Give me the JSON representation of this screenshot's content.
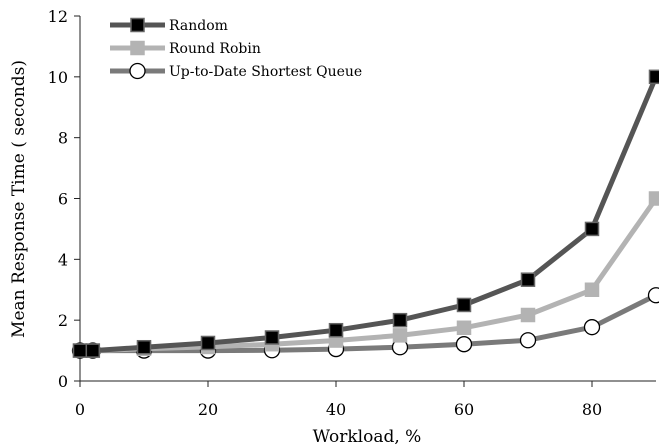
{
  "chart_data": {
    "type": "line",
    "xlabel": "Workload, %",
    "ylabel": "Mean Response Time ( seconds)",
    "xlim": [
      0,
      90
    ],
    "ylim": [
      0,
      12
    ],
    "xticks": [
      0,
      20,
      40,
      60,
      80
    ],
    "yticks": [
      0,
      2,
      4,
      6,
      8,
      10,
      12
    ],
    "grid": false,
    "legend_position": "top-left",
    "series": [
      {
        "name": "Random",
        "color": "#555555",
        "marker": "square-filled",
        "marker_fill": "#000000",
        "points": [
          [
            0,
            1.0
          ],
          [
            2,
            1.0
          ],
          [
            10,
            1.11
          ],
          [
            20,
            1.25
          ],
          [
            30,
            1.43
          ],
          [
            40,
            1.67
          ],
          [
            50,
            2.0
          ],
          [
            60,
            2.5
          ],
          [
            70,
            3.33
          ],
          [
            80,
            5.0
          ],
          [
            90,
            10.0
          ]
        ]
      },
      {
        "name": "Round Robin",
        "color": "#b3b3b3",
        "marker": "square-filled",
        "marker_fill": "#b3b3b3",
        "points": [
          [
            0,
            1.0
          ],
          [
            2,
            1.0
          ],
          [
            10,
            1.06
          ],
          [
            20,
            1.12
          ],
          [
            30,
            1.21
          ],
          [
            40,
            1.33
          ],
          [
            50,
            1.5
          ],
          [
            60,
            1.75
          ],
          [
            70,
            2.17
          ],
          [
            80,
            3.0
          ],
          [
            90,
            6.0
          ]
        ]
      },
      {
        "name": "Up-to-Date Shortest Queue",
        "color": "#7a7a7a",
        "marker": "circle-open",
        "marker_fill": "#ffffff",
        "points": [
          [
            0,
            1.0
          ],
          [
            2,
            1.0
          ],
          [
            10,
            1.0
          ],
          [
            20,
            1.0
          ],
          [
            30,
            1.01
          ],
          [
            40,
            1.05
          ],
          [
            50,
            1.11
          ],
          [
            60,
            1.21
          ],
          [
            70,
            1.34
          ],
          [
            80,
            1.77
          ],
          [
            90,
            2.82
          ]
        ]
      }
    ]
  }
}
